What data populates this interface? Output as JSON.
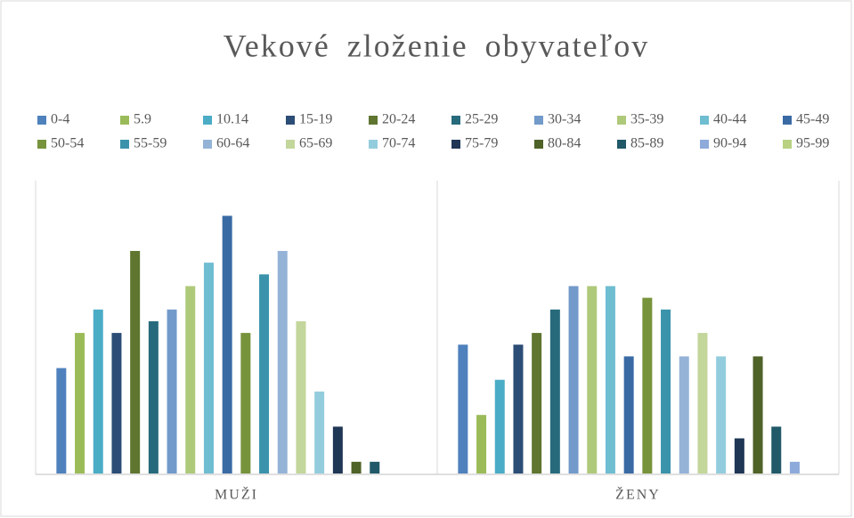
{
  "chart_data": {
    "type": "bar",
    "title": "Vekové zloženie obyvateľov",
    "categories": [
      "MUŽI",
      "ŽENY"
    ],
    "ylim": [
      0,
      25
    ],
    "series": [
      {
        "name": "0-4",
        "color": "#4f81bd",
        "values": [
          9,
          11
        ]
      },
      {
        "name": "5.9",
        "color": "#9bbb59",
        "values": [
          12,
          5
        ]
      },
      {
        "name": "10.14",
        "color": "#4bacc6",
        "values": [
          14,
          8
        ]
      },
      {
        "name": "15-19",
        "color": "#2c4d75",
        "values": [
          12,
          11
        ]
      },
      {
        "name": "20-24",
        "color": "#5f7530",
        "values": [
          19,
          12
        ]
      },
      {
        "name": "25-29",
        "color": "#276a7c",
        "values": [
          13,
          14
        ]
      },
      {
        "name": "30-34",
        "color": "#729aca",
        "values": [
          14,
          16
        ]
      },
      {
        "name": "35-39",
        "color": "#afc97a",
        "values": [
          16,
          16
        ]
      },
      {
        "name": "40-44",
        "color": "#6fbdd1",
        "values": [
          18,
          16
        ]
      },
      {
        "name": "45-49",
        "color": "#3a6aa4",
        "values": [
          22,
          10
        ]
      },
      {
        "name": "50-54",
        "color": "#77933c",
        "values": [
          12,
          15
        ]
      },
      {
        "name": "55-59",
        "color": "#3a93ab",
        "values": [
          17,
          14
        ]
      },
      {
        "name": "60-64",
        "color": "#95b3d7",
        "values": [
          19,
          10
        ]
      },
      {
        "name": "65-69",
        "color": "#c3d69b",
        "values": [
          13,
          12
        ]
      },
      {
        "name": "70-74",
        "color": "#93cddd",
        "values": [
          7,
          10
        ]
      },
      {
        "name": "75-79",
        "color": "#1f3655",
        "values": [
          4,
          3
        ]
      },
      {
        "name": "80-84",
        "color": "#4f6228",
        "values": [
          1,
          10
        ]
      },
      {
        "name": "85-89",
        "color": "#215968",
        "values": [
          1,
          4
        ]
      },
      {
        "name": "90-94",
        "color": "#8eaadb",
        "values": [
          0,
          1
        ]
      },
      {
        "name": "95-99",
        "color": "#b8d282",
        "values": [
          0,
          0
        ]
      }
    ]
  }
}
